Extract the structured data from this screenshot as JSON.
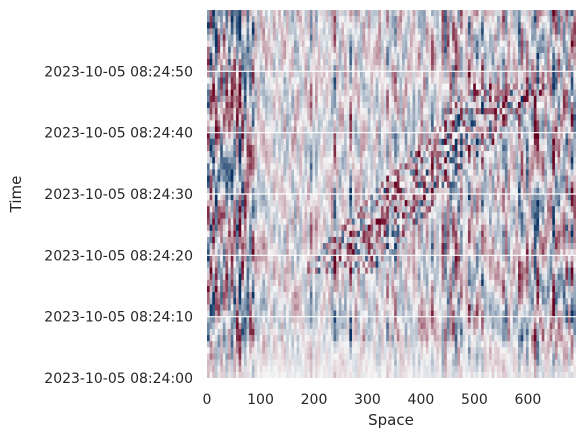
{
  "chart_data": {
    "type": "heatmap",
    "title": "",
    "xlabel": "Space",
    "ylabel": "Time",
    "x_ticks": [
      0,
      100,
      200,
      300,
      400,
      500,
      600
    ],
    "xlim": [
      0,
      690
    ],
    "y_ticks": [
      "2023-10-05 08:24:00",
      "2023-10-05 08:24:10",
      "2023-10-05 08:24:20",
      "2023-10-05 08:24:30",
      "2023-10-05 08:24:40",
      "2023-10-05 08:24:50"
    ],
    "ylim": [
      "2023-10-05 08:24:00",
      "2023-10-05 08:25:00"
    ],
    "colormap": "diverging red-white-blue",
    "colors": {
      "negative": "#053061",
      "zero": "#f7f7f7",
      "positive": "#67001f"
    },
    "grid": true,
    "grid_color": "#ffffff",
    "style_notes": "waterfall plot of signal amplitude along fibre; bright vertical streak lines, diagonal band of activity from about (270, 08:24:20) to (540, 08:24:45)"
  }
}
